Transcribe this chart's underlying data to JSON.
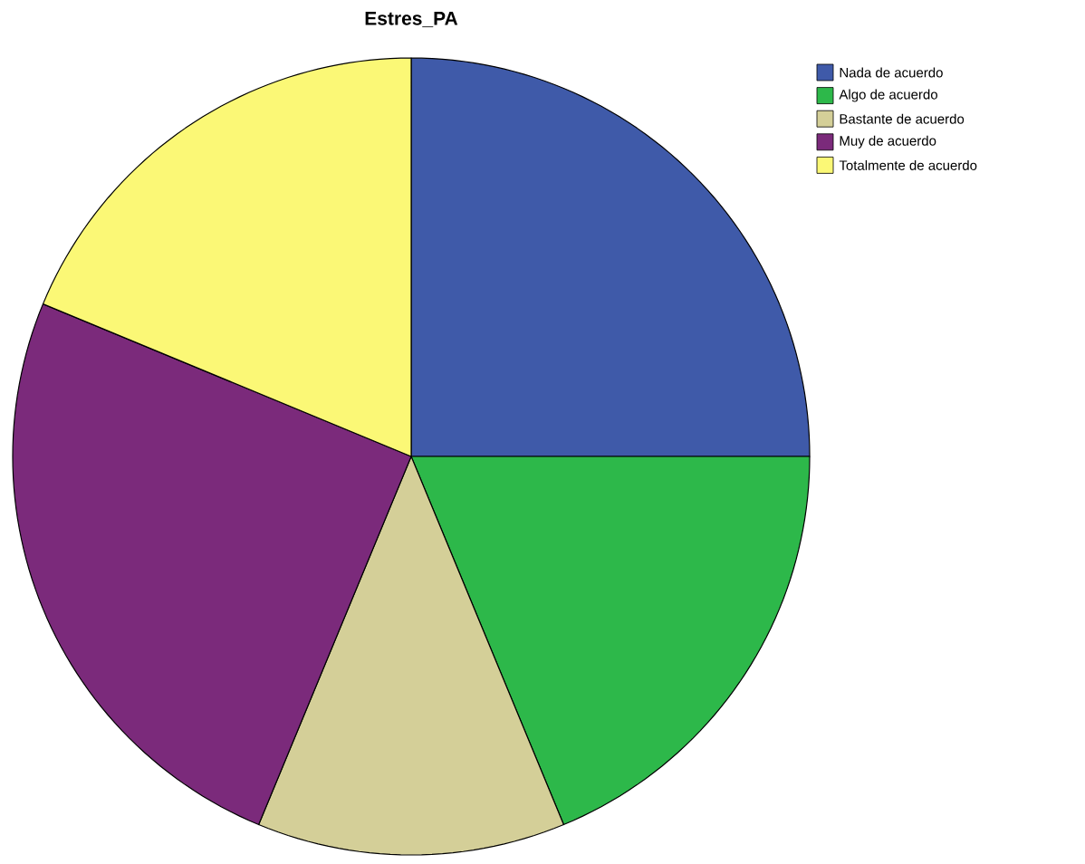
{
  "chart_data": {
    "type": "pie",
    "title": "Estres_PA",
    "categories": [
      "Nada de acuerdo",
      "Algo de acuerdo",
      "Bastante de acuerdo",
      "Muy de acuerdo",
      "Totalmente de acuerdo"
    ],
    "values": [
      25,
      18.75,
      12.5,
      25,
      18.75
    ],
    "colors": [
      "#3f5aa9",
      "#2db84a",
      "#d4cf98",
      "#7b2a7b",
      "#fbf876"
    ],
    "legend": "top right"
  }
}
